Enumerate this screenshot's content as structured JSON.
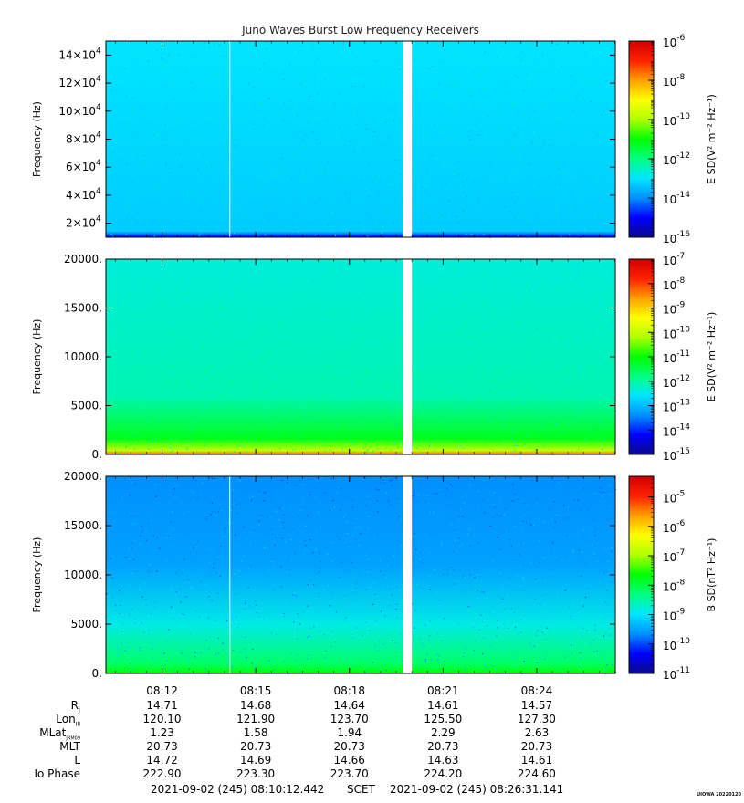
{
  "title": "Juno Waves Burst Low Frequency Receivers",
  "colors": {
    "colormap": [
      "#0a0a8c",
      "#0000ff",
      "#0090ff",
      "#00e5ff",
      "#00ff80",
      "#00ff00",
      "#b0ff00",
      "#ffff00",
      "#ffa000",
      "#ff2000",
      "#d00000"
    ],
    "gap": "#ffffff"
  },
  "chart_data": [
    {
      "type": "heatmap",
      "ylabel": "Frequency (Hz)",
      "yticks": [
        {
          "value": 20000,
          "base": "2×10",
          "exp": "4"
        },
        {
          "value": 40000,
          "base": "4×10",
          "exp": "4"
        },
        {
          "value": 60000,
          "base": "6×10",
          "exp": "4"
        },
        {
          "value": 80000,
          "base": "8×10",
          "exp": "4"
        },
        {
          "value": 100000,
          "base": "10×10",
          "exp": "4"
        },
        {
          "value": 120000,
          "base": "12×10",
          "exp": "4"
        },
        {
          "value": 140000,
          "base": "14×10",
          "exp": "4"
        }
      ],
      "ylim": [
        10000,
        150000
      ],
      "colorbar_label": "E SD(V² m⁻² Hz⁻¹)",
      "colorbar_ticks": [
        "10-6",
        "10-8",
        "10-10",
        "10-12",
        "10-14",
        "10-16"
      ],
      "clim_exp": [
        -16,
        -6
      ],
      "background_level": 0.3
    },
    {
      "type": "heatmap",
      "ylabel": "Frequency (Hz)",
      "yticks": [
        {
          "value": 0,
          "base": "0.",
          "exp": ""
        },
        {
          "value": 5000,
          "base": "5000.",
          "exp": ""
        },
        {
          "value": 10000,
          "base": "10000.",
          "exp": ""
        },
        {
          "value": 15000,
          "base": "15000.",
          "exp": ""
        },
        {
          "value": 20000,
          "base": "20000.",
          "exp": ""
        }
      ],
      "ylim": [
        0,
        20000
      ],
      "colorbar_label": "E SD(V² m⁻² Hz⁻¹)",
      "colorbar_ticks": [
        "10-7",
        "10-8",
        "10-9",
        "10-10",
        "10-11",
        "10-12",
        "10-13",
        "10-14",
        "10-15"
      ],
      "clim_exp": [
        -15,
        -7
      ],
      "background_level": 0.33
    },
    {
      "type": "heatmap",
      "ylabel": "Frequency (Hz)",
      "yticks": [
        {
          "value": 0,
          "base": "0.",
          "exp": ""
        },
        {
          "value": 5000,
          "base": "5000.",
          "exp": ""
        },
        {
          "value": 10000,
          "base": "10000.",
          "exp": ""
        },
        {
          "value": 15000,
          "base": "15000.",
          "exp": ""
        },
        {
          "value": 20000,
          "base": "20000.",
          "exp": ""
        }
      ],
      "ylim": [
        0,
        20000
      ],
      "colorbar_label": "B SD(nT² Hz⁻¹)",
      "colorbar_ticks": [
        "10-5",
        "10-6",
        "10-7",
        "10-8",
        "10-9",
        "10-10",
        "10-11"
      ],
      "clim_exp": [
        -11,
        -4.3
      ],
      "background_level": 0.2
    }
  ],
  "time_axis": {
    "start": "08:10:12",
    "end": "08:26:31",
    "ticks": [
      "08:12",
      "08:15",
      "08:18",
      "08:21",
      "08:24"
    ],
    "data_gap": [
      "08:19:43",
      "08:20:00"
    ]
  },
  "ephemeris": {
    "labels": {
      "rj": "R",
      "rj_sub": "J",
      "lon": "Lon",
      "lon_sub": "III",
      "mlat": "MLat",
      "mlat_sub": "JRM09",
      "mlt": "MLT",
      "l": "L",
      "io": "Io Phase"
    },
    "columns": [
      {
        "rj": "14.71",
        "lon": "120.10",
        "mlat": "1.23",
        "mlt": "20.73",
        "l": "14.72",
        "io": "222.90"
      },
      {
        "rj": "14.68",
        "lon": "121.90",
        "mlat": "1.58",
        "mlt": "20.73",
        "l": "14.69",
        "io": "223.30"
      },
      {
        "rj": "14.64",
        "lon": "123.70",
        "mlat": "1.94",
        "mlt": "20.73",
        "l": "14.66",
        "io": "223.70"
      },
      {
        "rj": "14.61",
        "lon": "125.50",
        "mlat": "2.29",
        "mlt": "20.73",
        "l": "14.63",
        "io": "224.20"
      },
      {
        "rj": "14.57",
        "lon": "127.30",
        "mlat": "2.63",
        "mlt": "20.73",
        "l": "14.61",
        "io": "224.60"
      }
    ]
  },
  "footer": {
    "start": "2021-09-02 (245) 08:10:12.442",
    "scet": "SCET",
    "end": "2021-09-02 (245) 08:26:31.141"
  },
  "credit": "UIOWA 20220120"
}
